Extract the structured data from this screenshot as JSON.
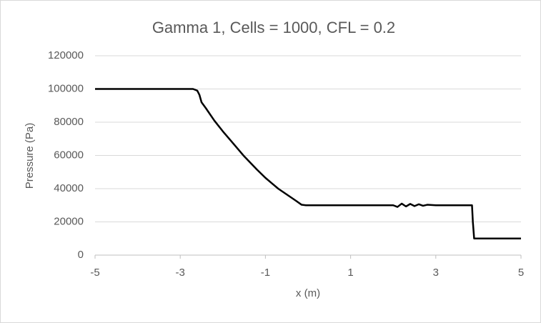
{
  "chart_data": {
    "type": "line",
    "title": "Gamma 1, Cells = 1000, CFL = 0.2",
    "x_label": "x (m)",
    "y_label": "Pressure (Pa)",
    "x": [
      -5,
      -2.7,
      -2.6,
      -2.55,
      -2.5,
      -2.4,
      -2.2,
      -2.0,
      -1.8,
      -1.5,
      -1.2,
      -1.0,
      -0.7,
      -0.5,
      -0.3,
      -0.15,
      -0.05,
      2.0,
      2.1,
      2.2,
      2.3,
      2.4,
      2.5,
      2.6,
      2.7,
      2.8,
      3.0,
      3.85,
      3.87,
      3.9,
      5
    ],
    "values": [
      100000,
      100000,
      99000,
      96500,
      92000,
      88500,
      81000,
      74500,
      68500,
      59500,
      51500,
      46500,
      40000,
      36500,
      33000,
      30300,
      30000,
      30000,
      29000,
      31000,
      29300,
      30800,
      29500,
      30600,
      29700,
      30300,
      30000,
      30000,
      20000,
      10000,
      10000
    ],
    "color": "#000000",
    "xlim": [
      -5,
      5
    ],
    "xticks": [
      -5,
      -3,
      -1,
      1,
      3,
      5
    ],
    "ylim": [
      0,
      120000
    ],
    "yticks": [
      0,
      20000,
      40000,
      60000,
      80000,
      100000,
      120000
    ],
    "grid": true
  }
}
